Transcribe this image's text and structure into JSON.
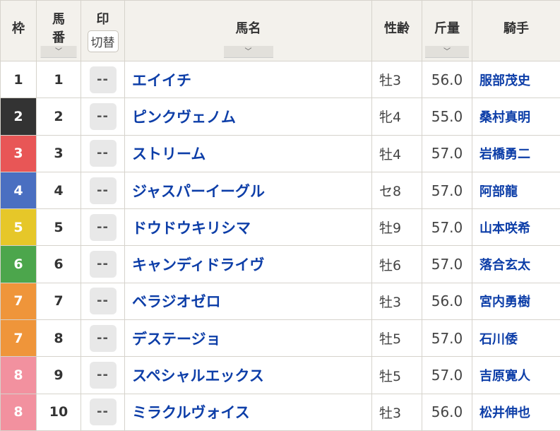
{
  "header": {
    "waku": "枠",
    "umaban_1": "馬",
    "umaban_2": "番",
    "mark": "印",
    "toggle": "切替",
    "name": "馬名",
    "sex_age": "性齢",
    "weight": "斤量",
    "jockey": "騎手",
    "sort_icon": "chevron-down-icon"
  },
  "frame_colors": {
    "1": "#ffffff",
    "2": "#333333",
    "3": "#e85656",
    "4": "#4a6fc1",
    "5": "#e6c729",
    "6": "#4ca64c",
    "7": "#ef953a",
    "8": "#f2919f"
  },
  "rows": [
    {
      "waku": "1",
      "num": "1",
      "mark": "--",
      "name": "エイイチ",
      "sex": "牡3",
      "weight": "56.0",
      "jockey": "服部茂史"
    },
    {
      "waku": "2",
      "num": "2",
      "mark": "--",
      "name": "ピンクヴェノム",
      "sex": "牝4",
      "weight": "55.0",
      "jockey": "桑村真明"
    },
    {
      "waku": "3",
      "num": "3",
      "mark": "--",
      "name": "ストリーム",
      "sex": "牡4",
      "weight": "57.0",
      "jockey": "岩橋勇二"
    },
    {
      "waku": "4",
      "num": "4",
      "mark": "--",
      "name": "ジャスパーイーグル",
      "sex": "セ8",
      "weight": "57.0",
      "jockey": "阿部龍"
    },
    {
      "waku": "5",
      "num": "5",
      "mark": "--",
      "name": "ドウドウキリシマ",
      "sex": "牡9",
      "weight": "57.0",
      "jockey": "山本咲希"
    },
    {
      "waku": "6",
      "num": "6",
      "mark": "--",
      "name": "キャンディドライヴ",
      "sex": "牡6",
      "weight": "57.0",
      "jockey": "落合玄太"
    },
    {
      "waku": "7",
      "num": "7",
      "mark": "--",
      "name": "ベラジオゼロ",
      "sex": "牡3",
      "weight": "56.0",
      "jockey": "宮内勇樹"
    },
    {
      "waku": "7",
      "num": "8",
      "mark": "--",
      "name": "デステージョ",
      "sex": "牡5",
      "weight": "57.0",
      "jockey": "石川倭"
    },
    {
      "waku": "8",
      "num": "9",
      "mark": "--",
      "name": "スペシャルエックス",
      "sex": "牡5",
      "weight": "57.0",
      "jockey": "吉原寛人"
    },
    {
      "waku": "8",
      "num": "10",
      "mark": "--",
      "name": "ミラクルヴォイス",
      "sex": "牡3",
      "weight": "56.0",
      "jockey": "松井伸也"
    }
  ]
}
